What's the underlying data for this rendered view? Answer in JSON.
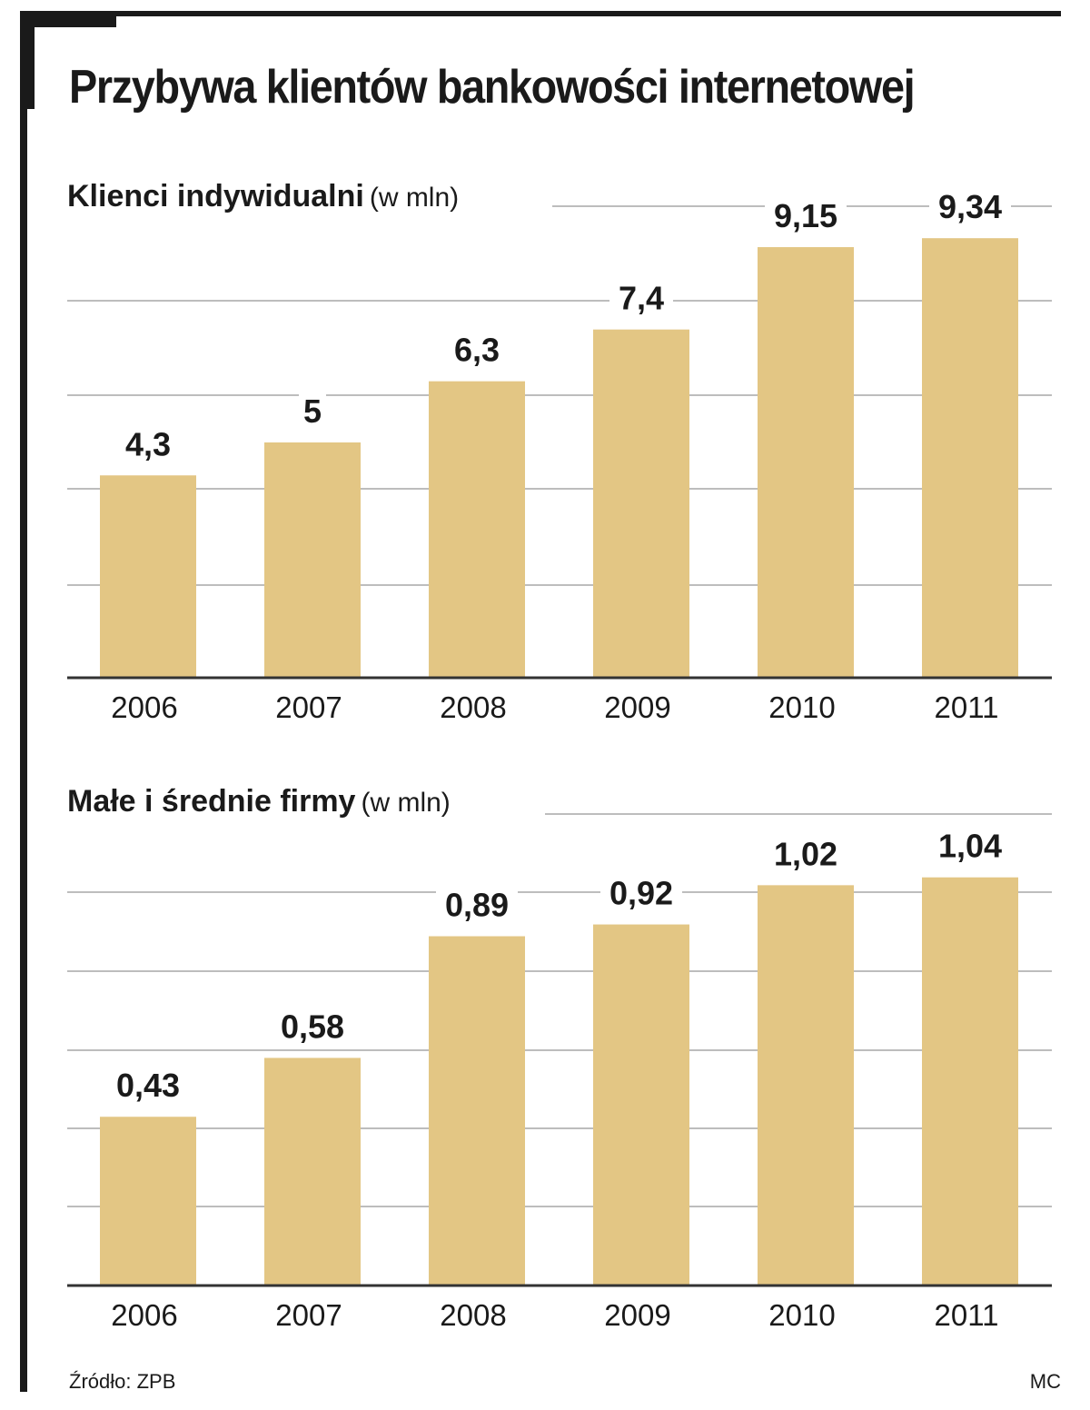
{
  "title": "Przybywa klientów bankowości internetowej",
  "chart_data": [
    {
      "type": "bar",
      "title": "Klienci indywidualni",
      "unit": "(w mln)",
      "categories": [
        "2006",
        "2007",
        "2008",
        "2009",
        "2010",
        "2011"
      ],
      "values": [
        4.3,
        5,
        6.3,
        7.4,
        9.15,
        9.34
      ],
      "value_labels": [
        "4,3",
        "5",
        "6,3",
        "7,4",
        "9,15",
        "9,34"
      ],
      "ylim": [
        0,
        10
      ],
      "grid": true,
      "bar_color": "#e3c684"
    },
    {
      "type": "bar",
      "title": "Małe i średnie firmy",
      "unit": "(w mln)",
      "categories": [
        "2006",
        "2007",
        "2008",
        "2009",
        "2010",
        "2011"
      ],
      "values": [
        0.43,
        0.58,
        0.89,
        0.92,
        1.02,
        1.04
      ],
      "value_labels": [
        "0,43",
        "0,58",
        "0,89",
        "0,92",
        "1,02",
        "1,04"
      ],
      "ylim": [
        0,
        1.2
      ],
      "grid": true,
      "bar_color": "#e3c684"
    }
  ],
  "source": "Źródło: ZPB",
  "credit": "MC"
}
